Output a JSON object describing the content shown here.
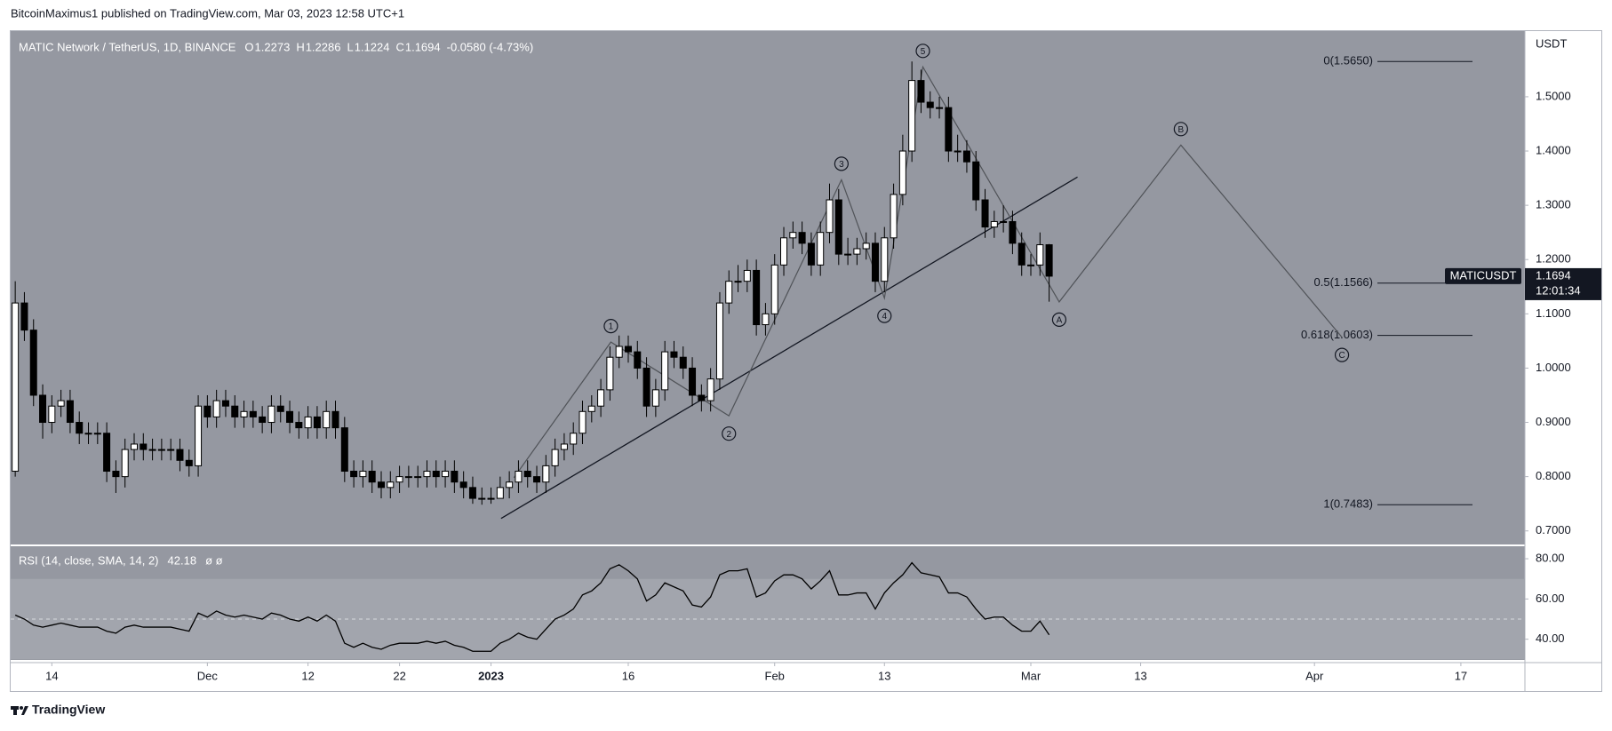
{
  "header": "BitcoinMaximus1 published on TradingView.com, Mar 03, 2023 12:58 UTC+1",
  "footer": "TradingView",
  "chart_data": [
    {
      "type": "candlestick",
      "title": "MATIC Network / TetherUS, 1D, BINANCE",
      "legend": [
        {
          "label": "O",
          "value": 1.2273
        },
        {
          "label": "H",
          "value": 1.2286
        },
        {
          "label": "L",
          "value": 1.1224
        },
        {
          "label": "C",
          "value": 1.1694
        }
      ],
      "change": "-0.0580 (-4.73%)",
      "axis_unit": "USDT",
      "symbol": "MATICUSDT",
      "last_price": 1.1694,
      "countdown": "12:01:34",
      "xlim": [
        -0.5,
        165
      ],
      "xticks": [
        {
          "value": 4,
          "label": "14"
        },
        {
          "value": 21,
          "label": "Dec"
        },
        {
          "value": 32,
          "label": "12"
        },
        {
          "value": 42,
          "label": "22"
        },
        {
          "value": 52,
          "label": "2023"
        },
        {
          "value": 67,
          "label": "16"
        },
        {
          "value": 83,
          "label": "Feb"
        },
        {
          "value": 95,
          "label": "13"
        },
        {
          "value": 111,
          "label": "Mar"
        },
        {
          "value": 123,
          "label": "13"
        },
        {
          "value": 142,
          "label": "Apr"
        },
        {
          "value": 158,
          "label": "17"
        }
      ],
      "ylim": [
        0.675,
        1.621
      ],
      "yticks": [
        {
          "value": 0.7,
          "label": "0.7000"
        },
        {
          "value": 0.8,
          "label": "0.8000"
        },
        {
          "value": 0.9,
          "label": "0.9000"
        },
        {
          "value": 1.0,
          "label": "1.0000"
        },
        {
          "value": 1.1,
          "label": "1.1000"
        },
        {
          "value": 1.2,
          "label": "1.2000"
        },
        {
          "value": 1.3,
          "label": "1.3000"
        },
        {
          "value": 1.4,
          "label": "1.4000"
        },
        {
          "value": 1.5,
          "label": "1.5000"
        }
      ],
      "grid": false,
      "up_color": "#ffffff",
      "down_color": "#000000",
      "wave_color": "#505358",
      "trendline_color": "#131722",
      "open": [
        0.81,
        1.12,
        1.07,
        0.95,
        0.9,
        0.93,
        0.94,
        0.9,
        0.88,
        0.88,
        0.88,
        0.81,
        0.8,
        0.85,
        0.86,
        0.85,
        0.85,
        0.85,
        0.85,
        0.83,
        0.82,
        0.93,
        0.91,
        0.94,
        0.93,
        0.91,
        0.92,
        0.91,
        0.9,
        0.93,
        0.92,
        0.9,
        0.89,
        0.91,
        0.89,
        0.92,
        0.89,
        0.81,
        0.8,
        0.81,
        0.79,
        0.78,
        0.79,
        0.8,
        0.8,
        0.8,
        0.81,
        0.8,
        0.81,
        0.79,
        0.78,
        0.76,
        0.76,
        0.76,
        0.78,
        0.79,
        0.81,
        0.8,
        0.79,
        0.82,
        0.85,
        0.86,
        0.88,
        0.92,
        0.93,
        0.96,
        1.02,
        1.04,
        1.03,
        1.0,
        0.93,
        0.96,
        1.03,
        1.02,
        1.0,
        0.95,
        0.94,
        0.98,
        1.12,
        1.16,
        1.16,
        1.18,
        1.08,
        1.1,
        1.19,
        1.24,
        1.25,
        1.23,
        1.19,
        1.25,
        1.31,
        1.21,
        1.21,
        1.22,
        1.23,
        1.16,
        1.24,
        1.32,
        1.4,
        1.53,
        1.49,
        1.48,
        1.48,
        1.4,
        1.4,
        1.38,
        1.31,
        1.26,
        1.27,
        1.27,
        1.23,
        1.19,
        1.19,
        1.2273
      ],
      "high": [
        1.16,
        1.14,
        1.09,
        0.97,
        0.95,
        0.96,
        0.96,
        0.92,
        0.9,
        0.9,
        0.9,
        0.83,
        0.87,
        0.88,
        0.88,
        0.87,
        0.87,
        0.87,
        0.87,
        0.85,
        0.95,
        0.95,
        0.96,
        0.96,
        0.95,
        0.94,
        0.94,
        0.93,
        0.95,
        0.95,
        0.94,
        0.92,
        0.93,
        0.93,
        0.94,
        0.94,
        0.91,
        0.83,
        0.83,
        0.83,
        0.81,
        0.81,
        0.82,
        0.82,
        0.82,
        0.83,
        0.83,
        0.83,
        0.83,
        0.81,
        0.8,
        0.78,
        0.78,
        0.8,
        0.81,
        0.83,
        0.83,
        0.82,
        0.84,
        0.87,
        0.88,
        0.9,
        0.94,
        0.95,
        0.98,
        1.04,
        1.06,
        1.06,
        1.05,
        1.02,
        0.98,
        1.05,
        1.05,
        1.04,
        1.02,
        0.97,
        1.0,
        1.14,
        1.18,
        1.19,
        1.2,
        1.2,
        1.12,
        1.21,
        1.26,
        1.27,
        1.27,
        1.25,
        1.27,
        1.34,
        1.33,
        1.24,
        1.24,
        1.25,
        1.25,
        1.26,
        1.34,
        1.43,
        1.565,
        1.55,
        1.51,
        1.5,
        1.5,
        1.43,
        1.42,
        1.4,
        1.33,
        1.29,
        1.3,
        1.29,
        1.25,
        1.21,
        1.25,
        1.2286
      ],
      "low": [
        0.8,
        1.05,
        0.93,
        0.87,
        0.88,
        0.91,
        0.88,
        0.86,
        0.86,
        0.86,
        0.79,
        0.77,
        0.78,
        0.83,
        0.83,
        0.83,
        0.83,
        0.83,
        0.81,
        0.8,
        0.8,
        0.89,
        0.89,
        0.91,
        0.89,
        0.89,
        0.89,
        0.88,
        0.88,
        0.9,
        0.88,
        0.87,
        0.87,
        0.87,
        0.87,
        0.87,
        0.79,
        0.78,
        0.78,
        0.77,
        0.76,
        0.76,
        0.77,
        0.78,
        0.78,
        0.78,
        0.78,
        0.78,
        0.77,
        0.76,
        0.75,
        0.7483,
        0.75,
        0.76,
        0.76,
        0.77,
        0.78,
        0.77,
        0.77,
        0.8,
        0.83,
        0.84,
        0.86,
        0.9,
        0.91,
        0.94,
        1.0,
        1.01,
        0.98,
        0.91,
        0.91,
        0.94,
        1.0,
        0.98,
        0.93,
        0.92,
        0.92,
        0.96,
        1.1,
        1.14,
        1.14,
        1.06,
        1.06,
        1.08,
        1.17,
        1.22,
        1.21,
        1.17,
        1.17,
        1.23,
        1.19,
        1.19,
        1.19,
        1.2,
        1.14,
        1.14,
        1.22,
        1.3,
        1.38,
        1.47,
        1.46,
        1.46,
        1.38,
        1.38,
        1.36,
        1.29,
        1.24,
        1.24,
        1.25,
        1.21,
        1.17,
        1.17,
        1.17,
        1.1224
      ],
      "close": [
        1.12,
        1.07,
        0.95,
        0.9,
        0.93,
        0.94,
        0.9,
        0.88,
        0.88,
        0.88,
        0.81,
        0.8,
        0.85,
        0.86,
        0.85,
        0.85,
        0.85,
        0.85,
        0.83,
        0.82,
        0.93,
        0.91,
        0.94,
        0.93,
        0.91,
        0.92,
        0.91,
        0.9,
        0.93,
        0.92,
        0.9,
        0.89,
        0.91,
        0.89,
        0.92,
        0.89,
        0.81,
        0.8,
        0.81,
        0.79,
        0.78,
        0.79,
        0.8,
        0.8,
        0.8,
        0.81,
        0.8,
        0.81,
        0.79,
        0.78,
        0.76,
        0.76,
        0.76,
        0.78,
        0.79,
        0.81,
        0.8,
        0.79,
        0.82,
        0.85,
        0.86,
        0.88,
        0.92,
        0.93,
        0.96,
        1.02,
        1.04,
        1.03,
        1.0,
        0.93,
        0.96,
        1.03,
        1.02,
        1.0,
        0.95,
        0.94,
        0.98,
        1.12,
        1.16,
        1.16,
        1.18,
        1.08,
        1.1,
        1.19,
        1.24,
        1.25,
        1.23,
        1.19,
        1.25,
        1.31,
        1.21,
        1.21,
        1.22,
        1.23,
        1.16,
        1.24,
        1.32,
        1.4,
        1.53,
        1.49,
        1.48,
        1.48,
        1.4,
        1.4,
        1.38,
        1.31,
        1.26,
        1.27,
        1.27,
        1.23,
        1.19,
        1.19,
        1.2273,
        1.1694
      ],
      "trendline": {
        "x": [
          53.1,
          116.1
        ],
        "y": [
          0.723,
          1.352
        ]
      },
      "wave_points": [
        {
          "x": 54.5,
          "y": 0.798
        },
        {
          "x": 65.1,
          "y": 1.048,
          "label": "1"
        },
        {
          "x": 78,
          "y": 0.912,
          "label": "2"
        },
        {
          "x": 90.3,
          "y": 1.347,
          "label": "3"
        },
        {
          "x": 95,
          "y": 1.129,
          "label": "4"
        },
        {
          "x": 99.2,
          "y": 1.555,
          "label": "5"
        },
        {
          "x": 114.1,
          "y": 1.122,
          "label": "A"
        },
        {
          "x": 127.4,
          "y": 1.411,
          "label": "B"
        },
        {
          "x": 145,
          "y": 1.057,
          "label": "C"
        }
      ],
      "fib_levels": [
        {
          "label": "0(1.5650)",
          "value": 1.565
        },
        {
          "label": "0.5(1.1566)",
          "value": 1.1566
        },
        {
          "label": "0.618(1.0603)",
          "value": 1.0603
        },
        {
          "label": "1(0.7483)",
          "value": 0.7483
        }
      ]
    },
    {
      "type": "line",
      "title": "RSI (14, close, SMA, 14, 2)",
      "last_value": 42.18,
      "na_labels": "ø ø",
      "color": "#000000",
      "ylim": [
        29.7,
        86.2
      ],
      "yticks": [
        {
          "value": 80,
          "label": "80.00"
        },
        {
          "value": 60,
          "label": "60.00"
        },
        {
          "value": 40,
          "label": "40.00"
        }
      ],
      "band": [
        30,
        70
      ],
      "midline": 50,
      "values": [
        52,
        50,
        47,
        46,
        47,
        48,
        47,
        46,
        46,
        46,
        44,
        43,
        46,
        47,
        46,
        46,
        46,
        46,
        45,
        44,
        53,
        51,
        54,
        52,
        51,
        52,
        51,
        50,
        53,
        52,
        50,
        49,
        51,
        49,
        52,
        49,
        38,
        36,
        38,
        36,
        35,
        37,
        38,
        38,
        38,
        39,
        38,
        39,
        37,
        36,
        34,
        34,
        34,
        38,
        40,
        43,
        41,
        40,
        45,
        50,
        52,
        55,
        62,
        64,
        68,
        75,
        77,
        74,
        70,
        59,
        62,
        68,
        66,
        64,
        57,
        56,
        61,
        72,
        74,
        74,
        75,
        61,
        63,
        69,
        72,
        72,
        70,
        65,
        69,
        74,
        62,
        62,
        63,
        63,
        55,
        63,
        68,
        72,
        78,
        73,
        72,
        71,
        63,
        63,
        61,
        55,
        50,
        51,
        51,
        47,
        44,
        44,
        49,
        42.18
      ]
    }
  ]
}
